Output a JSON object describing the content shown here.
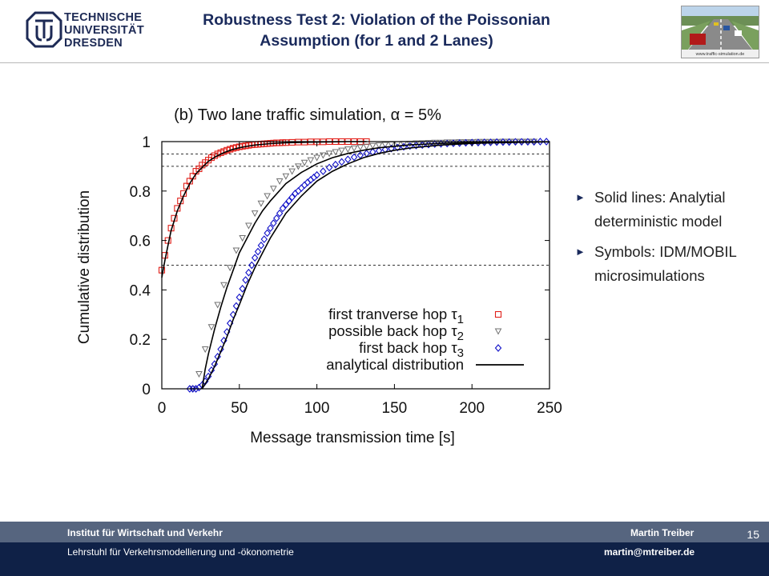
{
  "header": {
    "logo_lines": [
      "TECHNISCHE",
      "UNIVERSITÄT",
      "DRESDEN"
    ],
    "title_line1": "Robustness Test 2: Violation of the Poissonian",
    "title_line2": "Assumption (for 1 and 2  Lanes)",
    "thumbnail_caption": "www.traffic-simulation.de"
  },
  "bullets": [
    {
      "text": "Solid lines: Analytial deterministic model"
    },
    {
      "text": "Symbols: IDM/MOBIL microsimulations"
    }
  ],
  "footer": {
    "institute": "Institut für Wirtschaft und Verkehr",
    "chair": "Lehrstuhl für Verkehrsmodellierung und -ökonometrie",
    "author": "Martin Treiber",
    "email": "martin@mtreiber.de",
    "page": "15"
  },
  "colors": {
    "navy": "#0f2147",
    "footer_gray": "#56657f",
    "series_tau1": "#e0201a",
    "series_tau2": "#707070",
    "series_tau3": "#1010c8",
    "analytic": "#000000"
  },
  "chart_data": {
    "type": "line",
    "title": "(b) Two lane traffic simulation, α = 5%",
    "xlabel": "Message transmission time [s]",
    "ylabel": "Cumulative distribution",
    "xlim": [
      0,
      250
    ],
    "ylim": [
      0,
      1
    ],
    "xticks": [
      0,
      50,
      100,
      150,
      200,
      250
    ],
    "xtick_labels": [
      "0",
      "50",
      "100",
      "150",
      "200",
      "250"
    ],
    "yticks": [
      0,
      0.2,
      0.4,
      0.6,
      0.8,
      1
    ],
    "ytick_labels": [
      "0",
      "0.2",
      "0.4",
      "0.6",
      "0.8",
      "1"
    ],
    "reference_lines_y": [
      0.5,
      0.9,
      0.95
    ],
    "legend_position": "bottom-right",
    "series": [
      {
        "name": "first tranverse hop",
        "symbol": "τ",
        "subscript": "1",
        "marker": "square",
        "x": [
          0,
          2,
          4,
          6,
          8,
          10,
          12,
          14,
          16,
          18,
          20,
          22,
          24,
          26,
          28,
          30,
          32,
          34,
          36,
          38,
          40,
          42,
          44,
          46,
          48,
          50,
          52,
          54,
          56,
          58,
          60,
          62,
          64,
          66,
          68,
          70,
          72,
          74,
          76,
          78,
          80,
          84,
          88,
          92,
          96,
          100,
          104,
          108,
          112,
          116,
          120,
          124,
          128,
          132
        ],
        "y": [
          0.48,
          0.54,
          0.6,
          0.65,
          0.69,
          0.73,
          0.76,
          0.79,
          0.82,
          0.84,
          0.86,
          0.88,
          0.89,
          0.905,
          0.915,
          0.925,
          0.935,
          0.943,
          0.95,
          0.955,
          0.96,
          0.965,
          0.969,
          0.973,
          0.976,
          0.979,
          0.981,
          0.983,
          0.985,
          0.987,
          0.988,
          0.989,
          0.99,
          0.991,
          0.992,
          0.993,
          0.994,
          0.995,
          0.995,
          0.996,
          0.996,
          0.997,
          0.998,
          0.998,
          0.999,
          0.999,
          0.999,
          1.0,
          1.0,
          1.0,
          1.0,
          1.0,
          1.0,
          1.0
        ]
      },
      {
        "name": "possible back hop",
        "symbol": "τ",
        "subscript": "2",
        "marker": "triangle-down",
        "x": [
          20,
          24,
          28,
          32,
          36,
          40,
          44,
          48,
          52,
          56,
          60,
          64,
          68,
          72,
          76,
          80,
          84,
          88,
          92,
          96,
          100,
          104,
          108,
          112,
          116,
          120,
          124,
          128,
          132,
          136,
          140,
          144,
          148,
          152,
          156,
          160,
          164,
          168,
          172,
          176,
          180,
          184,
          188,
          192,
          196,
          200,
          204,
          208,
          212,
          216,
          220,
          224,
          228,
          232,
          236,
          240
        ],
        "y": [
          0.0,
          0.06,
          0.16,
          0.25,
          0.34,
          0.42,
          0.49,
          0.56,
          0.61,
          0.66,
          0.71,
          0.75,
          0.78,
          0.81,
          0.84,
          0.86,
          0.88,
          0.9,
          0.915,
          0.925,
          0.935,
          0.945,
          0.952,
          0.958,
          0.964,
          0.969,
          0.973,
          0.977,
          0.98,
          0.983,
          0.985,
          0.987,
          0.989,
          0.99,
          0.991,
          0.992,
          0.993,
          0.994,
          0.995,
          0.996,
          0.996,
          0.997,
          0.997,
          0.998,
          0.998,
          0.998,
          0.999,
          0.999,
          0.999,
          0.999,
          1.0,
          1.0,
          1.0,
          1.0,
          1.0,
          1.0
        ]
      },
      {
        "name": "first back hop",
        "symbol": "τ",
        "subscript": "3",
        "marker": "diamond",
        "x": [
          18,
          20,
          22,
          24,
          26,
          28,
          30,
          32,
          34,
          36,
          38,
          40,
          42,
          44,
          46,
          48,
          50,
          52,
          54,
          56,
          58,
          60,
          62,
          64,
          66,
          68,
          70,
          72,
          74,
          76,
          78,
          80,
          82,
          84,
          86,
          88,
          90,
          92,
          94,
          96,
          98,
          100,
          104,
          108,
          112,
          116,
          120,
          124,
          128,
          132,
          136,
          140,
          144,
          148,
          152,
          156,
          160,
          164,
          168,
          172,
          176,
          180,
          184,
          188,
          192,
          196,
          200,
          204,
          208,
          212,
          216,
          220,
          224,
          228,
          232,
          236,
          240,
          244,
          248
        ],
        "y": [
          0.0,
          0.0,
          0.0,
          0.005,
          0.015,
          0.03,
          0.05,
          0.075,
          0.1,
          0.13,
          0.16,
          0.195,
          0.23,
          0.265,
          0.3,
          0.335,
          0.37,
          0.405,
          0.44,
          0.47,
          0.5,
          0.53,
          0.555,
          0.58,
          0.605,
          0.63,
          0.65,
          0.67,
          0.69,
          0.71,
          0.73,
          0.745,
          0.76,
          0.775,
          0.79,
          0.8,
          0.812,
          0.824,
          0.835,
          0.845,
          0.855,
          0.865,
          0.88,
          0.895,
          0.907,
          0.918,
          0.928,
          0.937,
          0.945,
          0.952,
          0.958,
          0.963,
          0.968,
          0.972,
          0.976,
          0.979,
          0.982,
          0.984,
          0.986,
          0.988,
          0.99,
          0.991,
          0.992,
          0.993,
          0.994,
          0.995,
          0.996,
          0.996,
          0.997,
          0.997,
          0.998,
          0.998,
          0.998,
          0.999,
          0.999,
          0.999,
          0.999,
          1.0,
          1.0
        ]
      },
      {
        "name": "analytical distribution",
        "marker": "line",
        "curves": [
          {
            "x": [
              0,
              2,
              4,
              6,
              8,
              10,
              14,
              18,
              22,
              26,
              30,
              35,
              40,
              45,
              50,
              55,
              60,
              70,
              80,
              90,
              100,
              110,
              120,
              132
            ],
            "y": [
              0.45,
              0.52,
              0.58,
              0.64,
              0.68,
              0.72,
              0.78,
              0.83,
              0.87,
              0.895,
              0.92,
              0.94,
              0.955,
              0.967,
              0.975,
              0.981,
              0.986,
              0.992,
              0.995,
              0.997,
              0.998,
              0.999,
              1.0,
              1.0
            ]
          },
          {
            "x": [
              26,
              28,
              30,
              34,
              38,
              42,
              46,
              50,
              55,
              60,
              65,
              70,
              80,
              90,
              100,
              110,
              120,
              130,
              140,
              160,
              180,
              200,
              220,
              240
            ],
            "y": [
              0.0,
              0.08,
              0.14,
              0.24,
              0.33,
              0.41,
              0.48,
              0.55,
              0.61,
              0.67,
              0.72,
              0.76,
              0.83,
              0.875,
              0.91,
              0.935,
              0.952,
              0.965,
              0.975,
              0.987,
              0.993,
              0.996,
              0.998,
              0.999
            ]
          },
          {
            "x": [
              26,
              28,
              30,
              34,
              38,
              42,
              46,
              50,
              55,
              60,
              65,
              70,
              75,
              80,
              90,
              100,
              110,
              120,
              130,
              140,
              150,
              160,
              180,
              200,
              220,
              240,
              250
            ],
            "y": [
              0.0,
              0.02,
              0.04,
              0.09,
              0.15,
              0.21,
              0.28,
              0.34,
              0.42,
              0.49,
              0.55,
              0.61,
              0.66,
              0.71,
              0.78,
              0.84,
              0.88,
              0.91,
              0.935,
              0.952,
              0.965,
              0.974,
              0.986,
              0.993,
              0.996,
              0.998,
              0.999
            ]
          }
        ]
      }
    ]
  }
}
